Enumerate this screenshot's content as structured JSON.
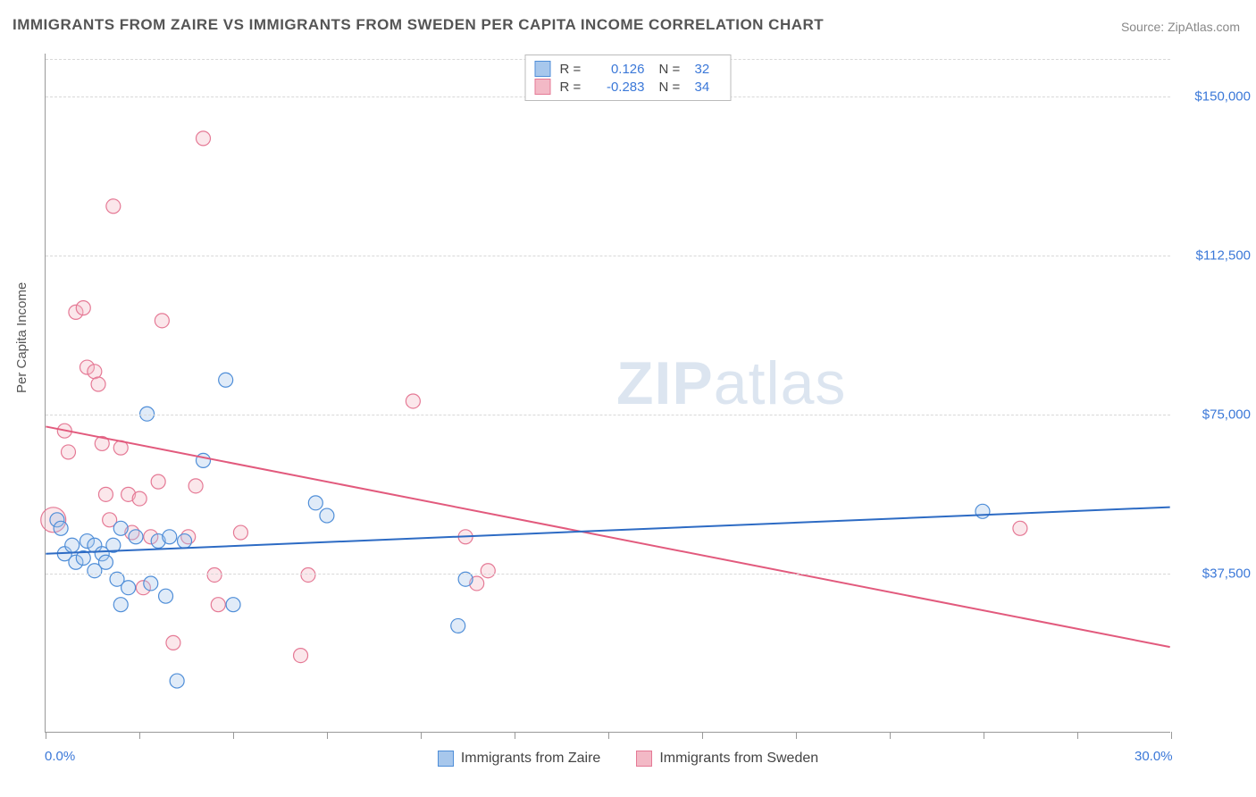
{
  "title": "IMMIGRANTS FROM ZAIRE VS IMMIGRANTS FROM SWEDEN PER CAPITA INCOME CORRELATION CHART",
  "source": "Source: ZipAtlas.com",
  "y_axis_label": "Per Capita Income",
  "watermark": {
    "zip": "ZIP",
    "atlas": "atlas"
  },
  "chart": {
    "type": "scatter",
    "background_color": "#ffffff",
    "grid_color": "#d8d8d8",
    "axis_color": "#999999",
    "label_color": "#3b78d8",
    "text_color": "#555555",
    "xlim": [
      0,
      30
    ],
    "ylim": [
      0,
      160000
    ],
    "x_ticks": [
      0,
      2.5,
      5,
      7.5,
      10,
      12.5,
      15,
      17.5,
      20,
      22.5,
      25,
      27.5,
      30
    ],
    "x_tick_labels": {
      "0": "0.0%",
      "30": "30.0%"
    },
    "y_ticks": [
      37500,
      75000,
      112500,
      150000
    ],
    "y_tick_labels": {
      "37500": "$37,500",
      "75000": "$75,000",
      "112500": "$112,500",
      "150000": "$150,000"
    },
    "title_fontsize": 17,
    "label_fontsize": 15,
    "marker_radius": 8,
    "marker_fill_opacity": 0.35,
    "marker_stroke_width": 1.2,
    "line_width": 2,
    "series": {
      "zaire": {
        "label": "Immigrants from Zaire",
        "fill_color": "#a7c7ec",
        "stroke_color": "#4f8ed8",
        "line_color": "#2d6bc4",
        "r_label": "R =",
        "r_value": "0.126",
        "n_label": "N =",
        "n_value": "32",
        "regression": {
          "x1": 0,
          "y1": 42000,
          "x2": 30,
          "y2": 53000
        },
        "points": [
          {
            "x": 0.3,
            "y": 50000
          },
          {
            "x": 0.4,
            "y": 48000
          },
          {
            "x": 0.5,
            "y": 42000
          },
          {
            "x": 0.7,
            "y": 44000
          },
          {
            "x": 0.8,
            "y": 40000
          },
          {
            "x": 1.0,
            "y": 41000
          },
          {
            "x": 1.1,
            "y": 45000
          },
          {
            "x": 1.3,
            "y": 38000
          },
          {
            "x": 1.3,
            "y": 44000
          },
          {
            "x": 1.5,
            "y": 42000
          },
          {
            "x": 1.6,
            "y": 40000
          },
          {
            "x": 1.8,
            "y": 44000
          },
          {
            "x": 1.9,
            "y": 36000
          },
          {
            "x": 2.0,
            "y": 30000
          },
          {
            "x": 2.2,
            "y": 34000
          },
          {
            "x": 2.4,
            "y": 46000
          },
          {
            "x": 2.7,
            "y": 75000
          },
          {
            "x": 2.8,
            "y": 35000
          },
          {
            "x": 3.0,
            "y": 45000
          },
          {
            "x": 3.2,
            "y": 32000
          },
          {
            "x": 3.3,
            "y": 46000
          },
          {
            "x": 3.5,
            "y": 12000
          },
          {
            "x": 3.7,
            "y": 45000
          },
          {
            "x": 4.2,
            "y": 64000
          },
          {
            "x": 4.8,
            "y": 83000
          },
          {
            "x": 5.0,
            "y": 30000
          },
          {
            "x": 7.2,
            "y": 54000
          },
          {
            "x": 7.5,
            "y": 51000
          },
          {
            "x": 11.0,
            "y": 25000
          },
          {
            "x": 11.2,
            "y": 36000
          },
          {
            "x": 2.0,
            "y": 48000
          },
          {
            "x": 25.0,
            "y": 52000
          }
        ]
      },
      "sweden": {
        "label": "Immigrants from Sweden",
        "fill_color": "#f3b9c6",
        "stroke_color": "#e57995",
        "line_color": "#e25a7d",
        "r_label": "R =",
        "r_value": "-0.283",
        "n_label": "N =",
        "n_value": "34",
        "regression": {
          "x1": 0,
          "y1": 72000,
          "x2": 30,
          "y2": 20000
        },
        "points": [
          {
            "x": 0.2,
            "y": 50000,
            "r": 14
          },
          {
            "x": 0.5,
            "y": 71000
          },
          {
            "x": 0.6,
            "y": 66000
          },
          {
            "x": 0.8,
            "y": 99000
          },
          {
            "x": 1.0,
            "y": 100000
          },
          {
            "x": 1.1,
            "y": 86000
          },
          {
            "x": 1.3,
            "y": 85000
          },
          {
            "x": 1.4,
            "y": 82000
          },
          {
            "x": 1.5,
            "y": 68000
          },
          {
            "x": 1.6,
            "y": 56000
          },
          {
            "x": 1.7,
            "y": 50000
          },
          {
            "x": 1.8,
            "y": 124000
          },
          {
            "x": 2.0,
            "y": 67000
          },
          {
            "x": 2.2,
            "y": 56000
          },
          {
            "x": 2.3,
            "y": 47000
          },
          {
            "x": 2.5,
            "y": 55000
          },
          {
            "x": 2.6,
            "y": 34000
          },
          {
            "x": 2.8,
            "y": 46000
          },
          {
            "x": 3.0,
            "y": 59000
          },
          {
            "x": 3.1,
            "y": 97000
          },
          {
            "x": 3.4,
            "y": 21000
          },
          {
            "x": 3.8,
            "y": 46000
          },
          {
            "x": 4.0,
            "y": 58000
          },
          {
            "x": 4.2,
            "y": 140000
          },
          {
            "x": 4.5,
            "y": 37000
          },
          {
            "x": 4.6,
            "y": 30000
          },
          {
            "x": 5.2,
            "y": 47000
          },
          {
            "x": 6.8,
            "y": 18000
          },
          {
            "x": 7.0,
            "y": 37000
          },
          {
            "x": 9.8,
            "y": 78000
          },
          {
            "x": 11.2,
            "y": 46000
          },
          {
            "x": 11.5,
            "y": 35000
          },
          {
            "x": 11.8,
            "y": 38000
          },
          {
            "x": 26.0,
            "y": 48000
          }
        ]
      }
    }
  }
}
